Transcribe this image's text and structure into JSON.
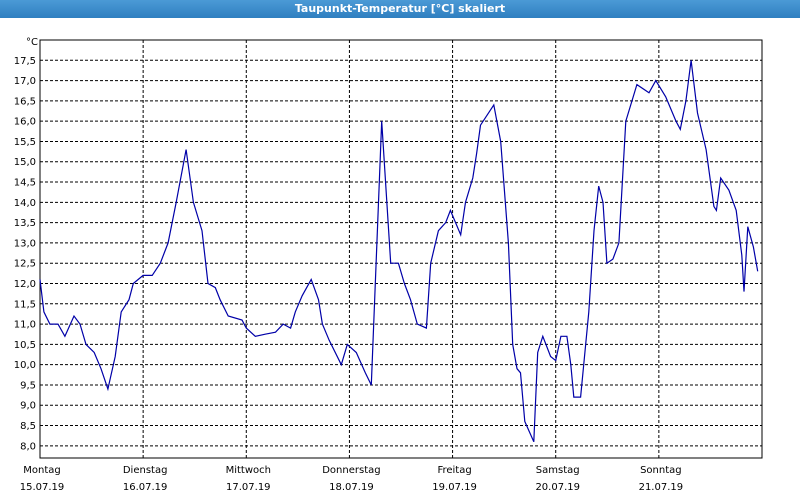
{
  "chart_data": {
    "type": "line",
    "title": "Taupunkt-Temperatur [°C] skaliert",
    "y_unit": "°C",
    "xlim": [
      0,
      168
    ],
    "xticks": [
      {
        "value": 0,
        "weekday": "Montag",
        "date": "15.07.19"
      },
      {
        "value": 24,
        "weekday": "Dienstag",
        "date": "16.07.19"
      },
      {
        "value": 48,
        "weekday": "Mittwoch",
        "date": "17.07.19"
      },
      {
        "value": 72,
        "weekday": "Donnerstag",
        "date": "18.07.19"
      },
      {
        "value": 96,
        "weekday": "Freitag",
        "date": "19.07.19"
      },
      {
        "value": 120,
        "weekday": "Samstag",
        "date": "20.07.19"
      },
      {
        "value": 144,
        "weekday": "Sonntag",
        "date": "21.07.19"
      }
    ],
    "ylim": [
      7.7,
      18.0
    ],
    "yticks": [
      {
        "value": 8.0,
        "label": "8,0"
      },
      {
        "value": 8.5,
        "label": "8,5"
      },
      {
        "value": 9.0,
        "label": "9,0"
      },
      {
        "value": 9.5,
        "label": "9,5"
      },
      {
        "value": 10.0,
        "label": "10,0"
      },
      {
        "value": 10.5,
        "label": "10,5"
      },
      {
        "value": 11.0,
        "label": "11,0"
      },
      {
        "value": 11.5,
        "label": "11,5"
      },
      {
        "value": 12.0,
        "label": "12,0"
      },
      {
        "value": 12.5,
        "label": "12,5"
      },
      {
        "value": 13.0,
        "label": "13,0"
      },
      {
        "value": 13.5,
        "label": "13,5"
      },
      {
        "value": 14.0,
        "label": "14,0"
      },
      {
        "value": 14.5,
        "label": "14,5"
      },
      {
        "value": 15.0,
        "label": "15,0"
      },
      {
        "value": 15.5,
        "label": "15,5"
      },
      {
        "value": 16.0,
        "label": "16,0"
      },
      {
        "value": 16.5,
        "label": "16,5"
      },
      {
        "value": 17.0,
        "label": "17,0"
      },
      {
        "value": 17.5,
        "label": "17,5"
      }
    ],
    "grid": true,
    "color": "#0000a8",
    "x": [
      0,
      0.9,
      2.3,
      4.2,
      5.8,
      7.9,
      9.3,
      10.7,
      12.6,
      14.2,
      15.8,
      17.5,
      18.9,
      20.7,
      21.7,
      24,
      26.1,
      28,
      29.8,
      31.7,
      34,
      35.7,
      37.7,
      39.1,
      40.8,
      41.9,
      43.8,
      47,
      48,
      50.1,
      52.4,
      54.8,
      56.6,
      58.3,
      59.4,
      61,
      63.1,
      64.8,
      65.7,
      67.3,
      70.1,
      71.5,
      73.6,
      75.7,
      77.1,
      79.5,
      81.6,
      83.4,
      84.8,
      86.2,
      87.8,
      89.9,
      90.9,
      92.7,
      94.4,
      95.5,
      97.9,
      99,
      100.7,
      101.6,
      102.5,
      105.6,
      107.2,
      109,
      110,
      111,
      111.8,
      112.8,
      114.9,
      115.8,
      117,
      118.8,
      120,
      121.2,
      122.6,
      123.5,
      124.2,
      125.8,
      127.7,
      128.9,
      130,
      131,
      131.9,
      133.3,
      134.7,
      136.3,
      138.9,
      141.7,
      143.3,
      145.6,
      148,
      149,
      150.3,
      151.5,
      153,
      155,
      156.8,
      157.4,
      158.4,
      160.3,
      162,
      163.3,
      163.8,
      164.7,
      166,
      167
    ],
    "values": [
      12.1,
      11.3,
      11.0,
      11.0,
      10.7,
      11.2,
      11.0,
      10.5,
      10.3,
      9.9,
      9.4,
      10.2,
      11.3,
      11.6,
      12.0,
      12.2,
      12.2,
      12.5,
      13.0,
      14.0,
      15.3,
      14.0,
      13.3,
      12.0,
      11.9,
      11.6,
      11.2,
      11.1,
      10.9,
      10.7,
      10.75,
      10.8,
      11.0,
      10.9,
      11.3,
      11.7,
      12.1,
      11.6,
      11.0,
      10.6,
      10.0,
      10.5,
      10.3,
      9.8,
      9.5,
      16.0,
      12.5,
      12.5,
      12.0,
      11.6,
      11.0,
      10.9,
      12.5,
      13.3,
      13.5,
      13.8,
      13.2,
      14.0,
      14.6,
      15.2,
      15.9,
      16.4,
      15.5,
      13.0,
      10.5,
      9.9,
      9.8,
      8.6,
      8.1,
      10.3,
      10.7,
      10.2,
      10.1,
      10.7,
      10.7,
      10.0,
      9.2,
      9.2,
      11.3,
      13.3,
      14.4,
      14.0,
      12.5,
      12.6,
      13.0,
      16.0,
      16.9,
      16.7,
      17.0,
      16.6,
      16.0,
      15.8,
      16.5,
      17.5,
      16.2,
      15.3,
      13.9,
      13.8,
      14.6,
      14.3,
      13.8,
      12.7,
      11.8,
      13.4,
      12.9,
      12.3
    ]
  }
}
